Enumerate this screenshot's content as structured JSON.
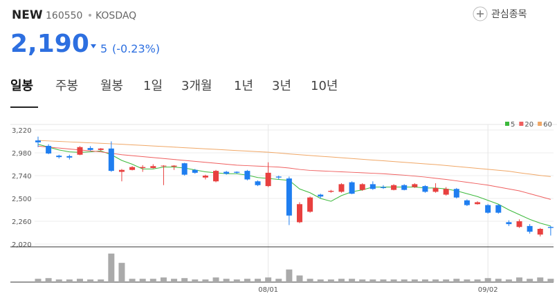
{
  "header": {
    "name": "NEW",
    "code": "160550",
    "market": "KOSDAQ",
    "watch": "관심종목",
    "price": "2,190",
    "change": "5",
    "change_pct": "(-0.23%)"
  },
  "tabs": [
    "일봉",
    "주봉",
    "월봉",
    "1일",
    "3개월",
    "1년",
    "3년",
    "10년"
  ],
  "chart_data": {
    "type": "candlestick",
    "categories": [
      null,
      null,
      null,
      null,
      null,
      null,
      null,
      null,
      null,
      null,
      null,
      null,
      null,
      null,
      null,
      null,
      null,
      null,
      null,
      null,
      null,
      null,
      "08/01",
      null,
      null,
      null,
      null,
      null,
      null,
      null,
      null,
      null,
      null,
      null,
      null,
      null,
      null,
      null,
      null,
      null,
      null,
      null,
      null,
      "09/02",
      null,
      null,
      null,
      null,
      null,
      null
    ],
    "open": [
      3110,
      3053,
      2950,
      2945,
      2960,
      3030,
      3010,
      3025,
      2780,
      2800,
      2820,
      2820,
      2840,
      2835,
      2870,
      2800,
      2720,
      2680,
      2780,
      2780,
      2790,
      2680,
      2630,
      2730,
      2710,
      2250,
      2360,
      2540,
      2570,
      2570,
      2670,
      2590,
      2650,
      2620,
      2590,
      2640,
      2620,
      2630,
      2570,
      2540,
      2600,
      2480,
      2440,
      2430,
      2430,
      2250,
      2200,
      2210,
      2120,
      2200
    ],
    "high": [
      3150,
      3070,
      2960,
      2960,
      3050,
      3050,
      3030,
      3100,
      2810,
      2840,
      2850,
      2860,
      2850,
      2850,
      2875,
      2810,
      2750,
      2800,
      2790,
      2785,
      2800,
      2690,
      2880,
      2740,
      2730,
      2460,
      2520,
      2550,
      2590,
      2660,
      2680,
      2660,
      2680,
      2640,
      2650,
      2650,
      2660,
      2640,
      2660,
      2620,
      2610,
      2490,
      2470,
      2440,
      2440,
      2270,
      2280,
      2230,
      2190,
      2210
    ],
    "low": [
      3040,
      2965,
      2920,
      2910,
      2955,
      3000,
      3000,
      2780,
      2680,
      2795,
      2780,
      2815,
      2640,
      2800,
      2740,
      2760,
      2700,
      2670,
      2750,
      2760,
      2690,
      2630,
      2620,
      2700,
      2220,
      2240,
      2350,
      2500,
      2560,
      2560,
      2545,
      2580,
      2590,
      2600,
      2585,
      2585,
      2610,
      2560,
      2560,
      2530,
      2500,
      2420,
      2435,
      2340,
      2340,
      2210,
      2190,
      2130,
      2100,
      2110
    ],
    "close": [
      3090,
      2973,
      2935,
      2930,
      3040,
      3010,
      3025,
      2790,
      2800,
      2830,
      2830,
      2840,
      2845,
      2845,
      2750,
      2770,
      2740,
      2790,
      2760,
      2770,
      2700,
      2640,
      2770,
      2720,
      2320,
      2440,
      2510,
      2520,
      2580,
      2650,
      2550,
      2650,
      2600,
      2610,
      2640,
      2590,
      2650,
      2570,
      2610,
      2600,
      2510,
      2430,
      2460,
      2350,
      2350,
      2230,
      2260,
      2150,
      2180,
      2190
    ],
    "up_color": "#e8403f",
    "down_color": "#1f7ef0",
    "series": [
      {
        "name": "5",
        "color": "#3cb93c",
        "values": [
          3070,
          3040,
          3010,
          2990,
          2985,
          2990,
          3000,
          2960,
          2900,
          2860,
          2810,
          2810,
          2830,
          2830,
          2820,
          2800,
          2780,
          2770,
          2760,
          2760,
          2745,
          2720,
          2710,
          2700,
          2690,
          2600,
          2560,
          2500,
          2470,
          2530,
          2570,
          2590,
          2620,
          2620,
          2620,
          2620,
          2620,
          2610,
          2610,
          2600,
          2580,
          2550,
          2520,
          2480,
          2440,
          2380,
          2330,
          2280,
          2240,
          2210
        ]
      },
      {
        "name": "20",
        "color": "#ef5e5e",
        "values": [
          3050,
          3040,
          3030,
          3020,
          3010,
          3000,
          2990,
          2975,
          2960,
          2950,
          2940,
          2930,
          2920,
          2910,
          2900,
          2890,
          2880,
          2870,
          2860,
          2850,
          2845,
          2840,
          2835,
          2830,
          2820,
          2805,
          2795,
          2790,
          2785,
          2780,
          2775,
          2770,
          2765,
          2760,
          2752,
          2745,
          2735,
          2725,
          2712,
          2700,
          2685,
          2670,
          2655,
          2640,
          2620,
          2600,
          2580,
          2550,
          2520,
          2490
        ]
      },
      {
        "name": "60",
        "color": "#f0a766",
        "values": [
          3110,
          3105,
          3100,
          3095,
          3090,
          3085,
          3080,
          3075,
          3070,
          3064,
          3058,
          3052,
          3046,
          3040,
          3034,
          3028,
          3022,
          3016,
          3010,
          3004,
          2998,
          2992,
          2986,
          2978,
          2968,
          2960,
          2952,
          2944,
          2936,
          2928,
          2920,
          2912,
          2904,
          2896,
          2888,
          2880,
          2872,
          2864,
          2856,
          2846,
          2836,
          2826,
          2816,
          2806,
          2796,
          2786,
          2770,
          2756,
          2742,
          2730
        ]
      }
    ],
    "volume": {
      "color": "#aaaaaa",
      "ylim": [
        0,
        100
      ],
      "values": [
        10,
        12,
        8,
        8,
        10,
        8,
        8,
        86,
        58,
        10,
        10,
        10,
        14,
        10,
        12,
        8,
        8,
        14,
        10,
        8,
        10,
        10,
        14,
        10,
        38,
        20,
        10,
        8,
        8,
        10,
        10,
        8,
        8,
        8,
        8,
        8,
        8,
        8,
        8,
        8,
        10,
        8,
        8,
        12,
        10,
        8,
        14,
        10,
        14,
        10
      ]
    },
    "ylim": [
      2020,
      3220
    ],
    "yticks": [
      {
        "value": 2020,
        "label": "2,020"
      },
      {
        "value": 2260,
        "label": "2,260"
      },
      {
        "value": 2500,
        "label": "2,500"
      },
      {
        "value": 2740,
        "label": "2,740"
      },
      {
        "value": 2980,
        "label": "2,980"
      },
      {
        "value": 3220,
        "label": "3,220"
      }
    ],
    "grid": true,
    "legend": "top-right"
  }
}
